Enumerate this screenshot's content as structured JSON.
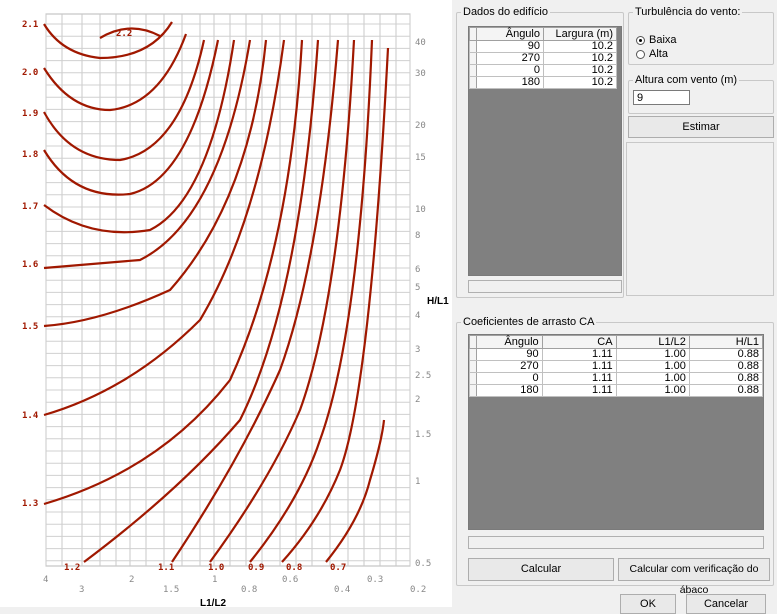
{
  "chart": {
    "left_axis_labels": [
      "2.1",
      "2.0",
      "1.9",
      "1.8",
      "1.7",
      "1.6",
      "1.5",
      "1.4",
      "1.3"
    ],
    "right_axis_labels": [
      "40",
      "30",
      "20",
      "15",
      "10",
      "8",
      "6",
      "5",
      "4",
      "3",
      "2.5",
      "2",
      "1.5",
      "1",
      "0.5"
    ],
    "bottom_axis_labels": [
      "4",
      "3",
      "2",
      "1.5",
      "1",
      "0.8",
      "0.6",
      "0.4",
      "0.3",
      "0.2"
    ],
    "curve_labels": [
      "2.2",
      "1.2",
      "1.1",
      "1.0",
      "0.9",
      "0.8",
      "0.7"
    ],
    "right_axis_title": "H/L1",
    "bottom_axis_title": "L1/L2",
    "curve_color": "#a01800",
    "label_color": "#a01800"
  },
  "building": {
    "legend": "Dados do edifício",
    "columns": [
      "Ângulo",
      "Largura (m)"
    ],
    "rows": [
      [
        "90",
        "10.2"
      ],
      [
        "270",
        "10.2"
      ],
      [
        "0",
        "10.2"
      ],
      [
        "180",
        "10.2"
      ]
    ]
  },
  "wind": {
    "legend": "Turbulência do vento:",
    "options": [
      "Baixa",
      "Alta"
    ],
    "selected": "Baixa"
  },
  "height": {
    "legend": "Altura com vento (m)",
    "value": "9"
  },
  "buttons": {
    "estimate": "Estimar",
    "calculate": "Calcular",
    "calculate_verify": "Calcular com verificação do ábaco",
    "ok": "OK",
    "cancel": "Cancelar"
  },
  "coefficients": {
    "legend": "Coeficientes de arrasto CA",
    "columns": [
      "Ângulo",
      "CA",
      "L1/L2",
      "H/L1"
    ],
    "rows": [
      [
        "90",
        "1.11",
        "1.00",
        "0.88"
      ],
      [
        "270",
        "1.11",
        "1.00",
        "0.88"
      ],
      [
        "0",
        "1.11",
        "1.00",
        "0.88"
      ],
      [
        "180",
        "1.11",
        "1.00",
        "0.88"
      ]
    ]
  }
}
